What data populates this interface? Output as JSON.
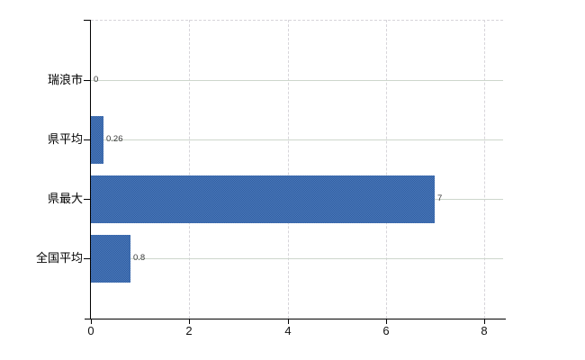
{
  "chart_data": {
    "type": "bar",
    "orientation": "horizontal",
    "title": "",
    "xlabel": "",
    "ylabel": "",
    "categories": [
      "瑞浪市",
      "県平均",
      "県最大",
      "全国平均"
    ],
    "values": [
      0,
      0.26,
      7,
      0.8
    ],
    "value_labels": [
      "0",
      "0.26",
      "7",
      "0.8"
    ],
    "xlim": [
      0,
      8
    ],
    "x_ticks": [
      0,
      2,
      4,
      6,
      8
    ],
    "x_tick_labels": [
      "0",
      "2",
      "4",
      "6",
      "8"
    ],
    "grid": true,
    "legend": false,
    "colors": {
      "bar_dither_light": "#4978bf",
      "bar_dither_dark": "#325f9d",
      "bar_average": "#3c6cad",
      "vertical_gridline": "#d7d5da",
      "horizontal_gridline": "#cdd6cc",
      "axis": "#000000",
      "value_label_text": "#3a3a3a",
      "tick_label_text": "#121212",
      "background": "#ffffff"
    }
  }
}
